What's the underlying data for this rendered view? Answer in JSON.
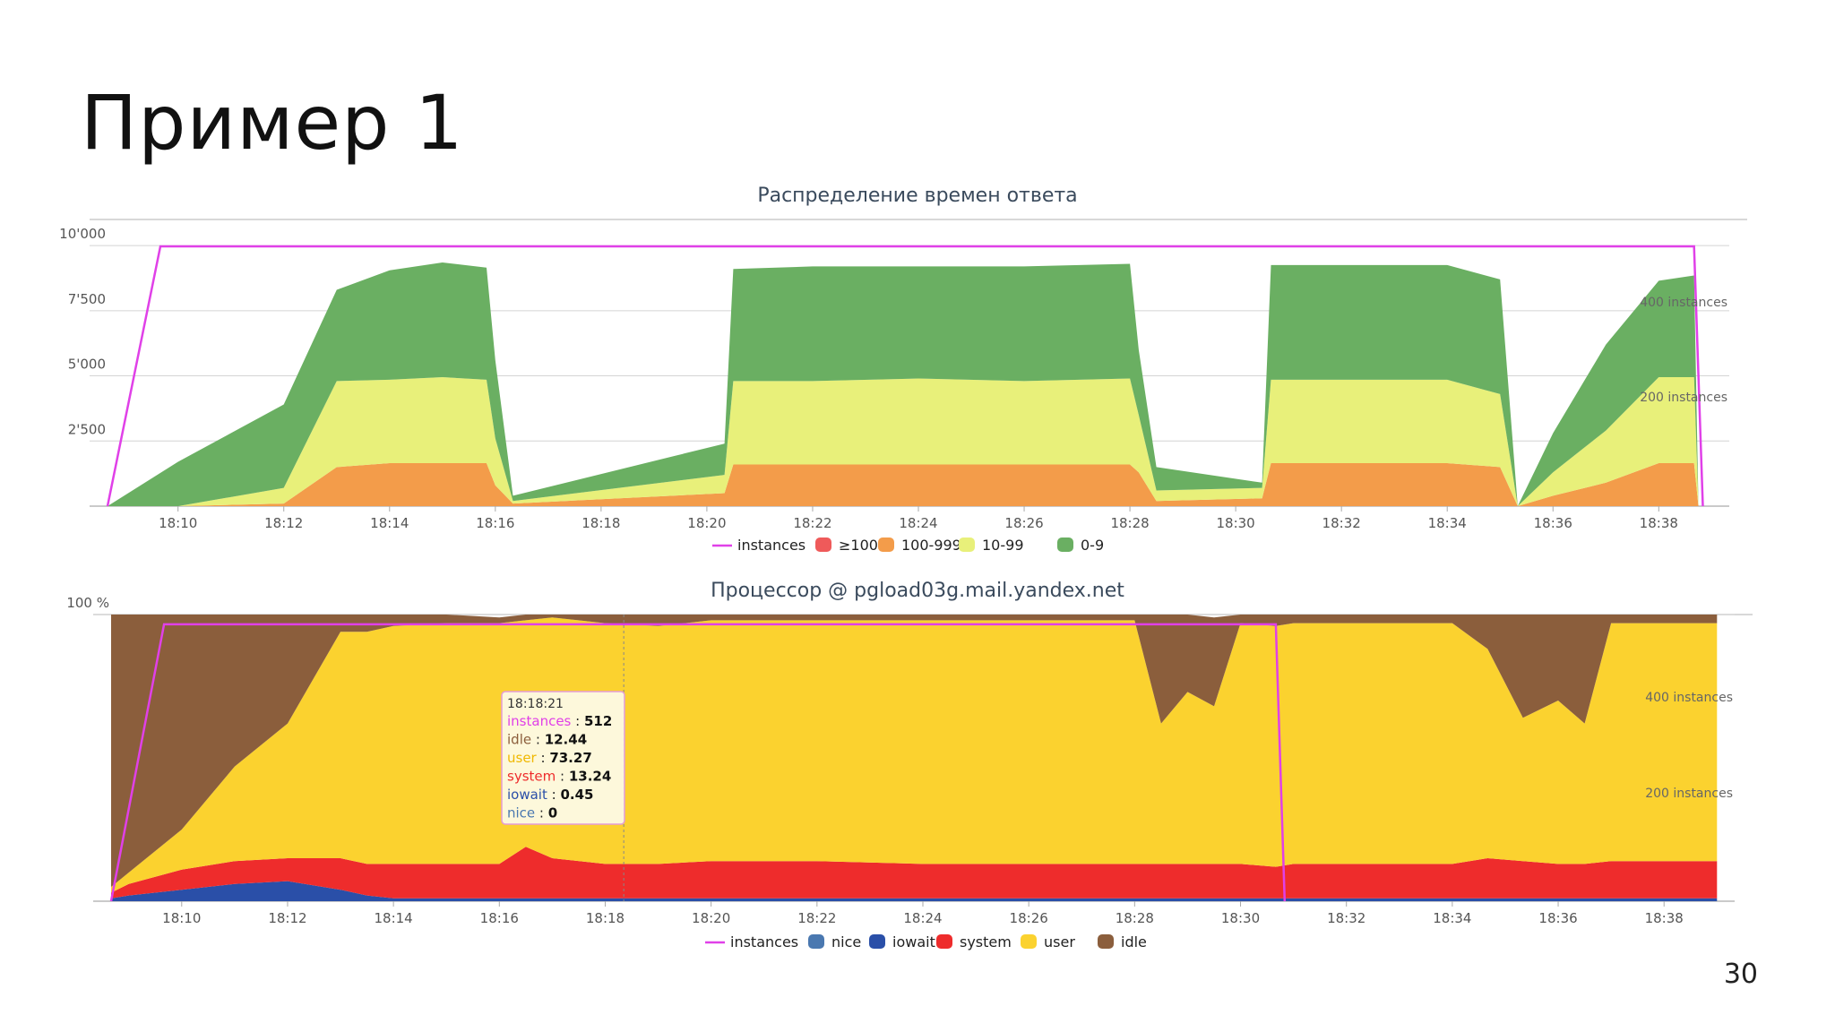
{
  "slide": {
    "title": "Пример 1",
    "page_number": "30"
  },
  "chart_data": [
    {
      "type": "area",
      "stacked": true,
      "title": "Распределение времен ответа",
      "x_tick_labels": [
        "18:10",
        "18:12",
        "18:14",
        "18:16",
        "18:18",
        "18:20",
        "18:22",
        "18:24",
        "18:26",
        "18:28",
        "18:30",
        "18:32",
        "18:34",
        "18:36",
        "18:38"
      ],
      "xlim": [
        "18:08:40",
        "18:39:20"
      ],
      "y_tick_labels": [
        "10'000",
        "7'500",
        "5'000",
        "2'500"
      ],
      "ylim": [
        0,
        11000
      ],
      "secondary_axis_labels": [
        "400 instances",
        "200 instances"
      ],
      "secondary_ylim": [
        0,
        565
      ],
      "grid": true,
      "legend_position": "bottom",
      "x": [
        "18:08:40",
        "18:10:00",
        "18:12:00",
        "18:13:00",
        "18:14:00",
        "18:15:00",
        "18:15:50",
        "18:16:00",
        "18:16:20",
        "18:20:20",
        "18:20:30",
        "18:22:00",
        "18:24:00",
        "18:26:00",
        "18:28:00",
        "18:28:10",
        "18:28:30",
        "18:30:30",
        "18:30:40",
        "18:32:00",
        "18:34:00",
        "18:35:00",
        "18:35:20",
        "18:36:00",
        "18:37:00",
        "18:38:00",
        "18:38:40",
        "18:38:45"
      ],
      "series": [
        {
          "name": "instances",
          "kind": "line",
          "axis": "secondary",
          "color": "#e040e8",
          "points": [
            [
              "18:08:40",
              0
            ],
            [
              "18:09:40",
              512
            ],
            [
              "18:38:40",
              512
            ],
            [
              "18:38:50",
              0
            ]
          ]
        },
        {
          "name": "≥1000",
          "color": "#ef5a5a",
          "values": [
            0,
            0,
            0,
            0,
            0,
            0,
            0,
            0,
            0,
            0,
            0,
            0,
            0,
            0,
            0,
            0,
            0,
            0,
            0,
            0,
            0,
            0,
            0,
            0,
            0,
            0,
            0,
            0
          ]
        },
        {
          "name": "100-999",
          "color": "#f39c4a",
          "values": [
            0,
            0,
            100,
            1500,
            1650,
            1650,
            1650,
            800,
            100,
            500,
            1600,
            1600,
            1600,
            1600,
            1600,
            1300,
            200,
            300,
            1650,
            1650,
            1650,
            1500,
            0,
            400,
            900,
            1650,
            1650,
            0
          ]
        },
        {
          "name": "10-99",
          "color": "#e8f07a",
          "values": [
            0,
            0,
            600,
            3300,
            3200,
            3300,
            3200,
            1800,
            100,
            700,
            3200,
            3200,
            3300,
            3200,
            3300,
            2200,
            400,
            400,
            3200,
            3200,
            3200,
            2800,
            0,
            900,
            2000,
            3300,
            3300,
            0
          ]
        },
        {
          "name": "0-9",
          "color": "#6aaf62",
          "values": [
            0,
            1700,
            3200,
            3500,
            4200,
            4400,
            4300,
            3000,
            200,
            1200,
            4300,
            4400,
            4300,
            4400,
            4400,
            2500,
            900,
            200,
            4400,
            4400,
            4400,
            4400,
            0,
            1500,
            3300,
            3700,
            3900,
            0
          ]
        }
      ]
    },
    {
      "type": "area",
      "stacked": true,
      "title": "Процессор @ pgload03g.mail.yandex.net",
      "x_tick_labels": [
        "18:10",
        "18:12",
        "18:14",
        "18:16",
        "18:18",
        "18:20",
        "18:22",
        "18:24",
        "18:26",
        "18:28",
        "18:30",
        "18:32",
        "18:34",
        "18:36",
        "18:38"
      ],
      "xlim": [
        "18:08:40",
        "18:39:20"
      ],
      "y_tick_labels": [
        "100 %"
      ],
      "ylim": [
        0,
        100
      ],
      "secondary_axis_labels": [
        "400 instances",
        "200 instances"
      ],
      "secondary_ylim": [
        0,
        530
      ],
      "grid": true,
      "legend_position": "bottom",
      "x": [
        "18:08:40",
        "18:09:00",
        "18:10:00",
        "18:11:00",
        "18:12:00",
        "18:13:00",
        "18:13:30",
        "18:14:00",
        "18:15:00",
        "18:16:00",
        "18:16:30",
        "18:17:00",
        "18:18:00",
        "18:19:00",
        "18:20:00",
        "18:22:00",
        "18:24:00",
        "18:26:00",
        "18:28:00",
        "18:28:30",
        "18:29:00",
        "18:29:30",
        "18:30:00",
        "18:30:40",
        "18:31:00",
        "18:32:00",
        "18:34:00",
        "18:34:40",
        "18:35:20",
        "18:36:00",
        "18:36:30",
        "18:37:00",
        "18:38:00",
        "18:39:00"
      ],
      "series": [
        {
          "name": "instances",
          "kind": "line",
          "axis": "secondary",
          "color": "#e040e8",
          "points": [
            [
              "18:08:40",
              0
            ],
            [
              "18:09:40",
              512
            ],
            [
              "18:30:40",
              512
            ],
            [
              "18:30:50",
              0
            ]
          ]
        },
        {
          "name": "nice",
          "color": "#4a78b0",
          "values": [
            0,
            0,
            0,
            0,
            0,
            0,
            0,
            0,
            0,
            0,
            0,
            0,
            0,
            0,
            0,
            0,
            0,
            0,
            0,
            0,
            0,
            0,
            0,
            0,
            0,
            0,
            0,
            0,
            0,
            0,
            0,
            0,
            0,
            0
          ]
        },
        {
          "name": "iowait",
          "color": "#2a4fa8",
          "values": [
            1,
            2,
            4,
            6,
            7,
            4,
            2,
            1,
            1,
            1,
            1,
            1,
            1,
            1,
            1,
            1,
            1,
            1,
            1,
            1,
            1,
            1,
            1,
            1,
            1,
            1,
            1,
            1,
            1,
            1,
            1,
            1,
            1,
            1
          ]
        },
        {
          "name": "system",
          "color": "#ee2c2c",
          "values": [
            2,
            4,
            7,
            8,
            8,
            11,
            11,
            12,
            12,
            12,
            18,
            14,
            12,
            12,
            13,
            13,
            12,
            12,
            12,
            12,
            12,
            12,
            12,
            11,
            12,
            12,
            12,
            14,
            13,
            12,
            12,
            13,
            13,
            13
          ]
        },
        {
          "name": "user",
          "color": "#fbd22f",
          "values": [
            2,
            4,
            14,
            33,
            47,
            79,
            81,
            83,
            84,
            84,
            79,
            84,
            84,
            83,
            84,
            84,
            85,
            85,
            85,
            49,
            60,
            55,
            84,
            84,
            84,
            84,
            84,
            73,
            50,
            57,
            49,
            83,
            83,
            83
          ]
        },
        {
          "name": "idle",
          "color": "#8b5e3c",
          "values": [
            95,
            90,
            75,
            53,
            38,
            6,
            6,
            4,
            3,
            2,
            2,
            1,
            3,
            4,
            2,
            2,
            2,
            2,
            2,
            38,
            27,
            31,
            3,
            4,
            3,
            3,
            3,
            12,
            36,
            30,
            38,
            3,
            3,
            3
          ]
        }
      ],
      "tooltip": {
        "time": "18:18:21",
        "rows": [
          {
            "label": "instances",
            "value": "512",
            "color": "#e040e8"
          },
          {
            "label": "idle",
            "value": "12.44",
            "color": "#8b5e3c"
          },
          {
            "label": "user",
            "value": "73.27",
            "color": "#f0b800"
          },
          {
            "label": "system",
            "value": "13.24",
            "color": "#ee2c2c"
          },
          {
            "label": "iowait",
            "value": "0.45",
            "color": "#2a4fa8"
          },
          {
            "label": "nice",
            "value": "0",
            "color": "#4a78b0"
          }
        ]
      }
    }
  ]
}
